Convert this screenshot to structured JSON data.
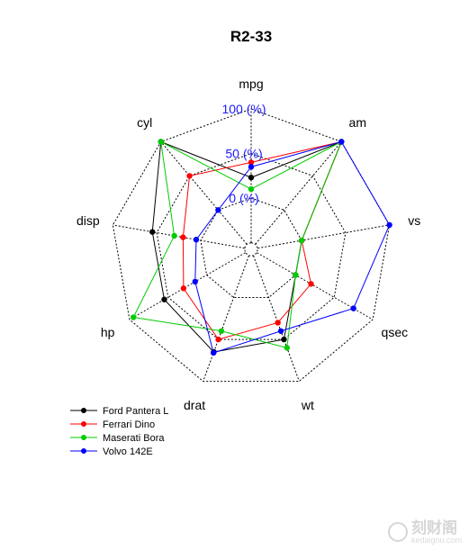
{
  "chart_data": {
    "type": "radar",
    "title": "R2-33",
    "axes": [
      "mpg",
      "am",
      "vs",
      "qsec",
      "wt",
      "drat",
      "hp",
      "disp",
      "cyl"
    ],
    "axis_labels": {
      "inner": "0 (%)",
      "middle": "50 (%)",
      "outer": "100 (%)"
    },
    "range": [
      0,
      100
    ],
    "grid_rings": 4,
    "legend_position": "bottom-left",
    "series": [
      {
        "name": "Ford Pantera L",
        "color": "#000000",
        "values": [
          23,
          100,
          0,
          0,
          50,
          65,
          55,
          55,
          100
        ]
      },
      {
        "name": "Ferrari Dino",
        "color": "#ff0000",
        "values": [
          40,
          100,
          0,
          20,
          30,
          50,
          30,
          20,
          50
        ]
      },
      {
        "name": "Maserati Bora",
        "color": "#00cc00",
        "values": [
          10,
          100,
          0,
          0,
          60,
          40,
          95,
          30,
          100
        ]
      },
      {
        "name": "Volvo 142E",
        "color": "#0000ff",
        "values": [
          35,
          100,
          100,
          75,
          40,
          66,
          15,
          5,
          0
        ]
      }
    ]
  },
  "watermark": {
    "main": "刻财阁",
    "sub": "kedaigou.com"
  }
}
